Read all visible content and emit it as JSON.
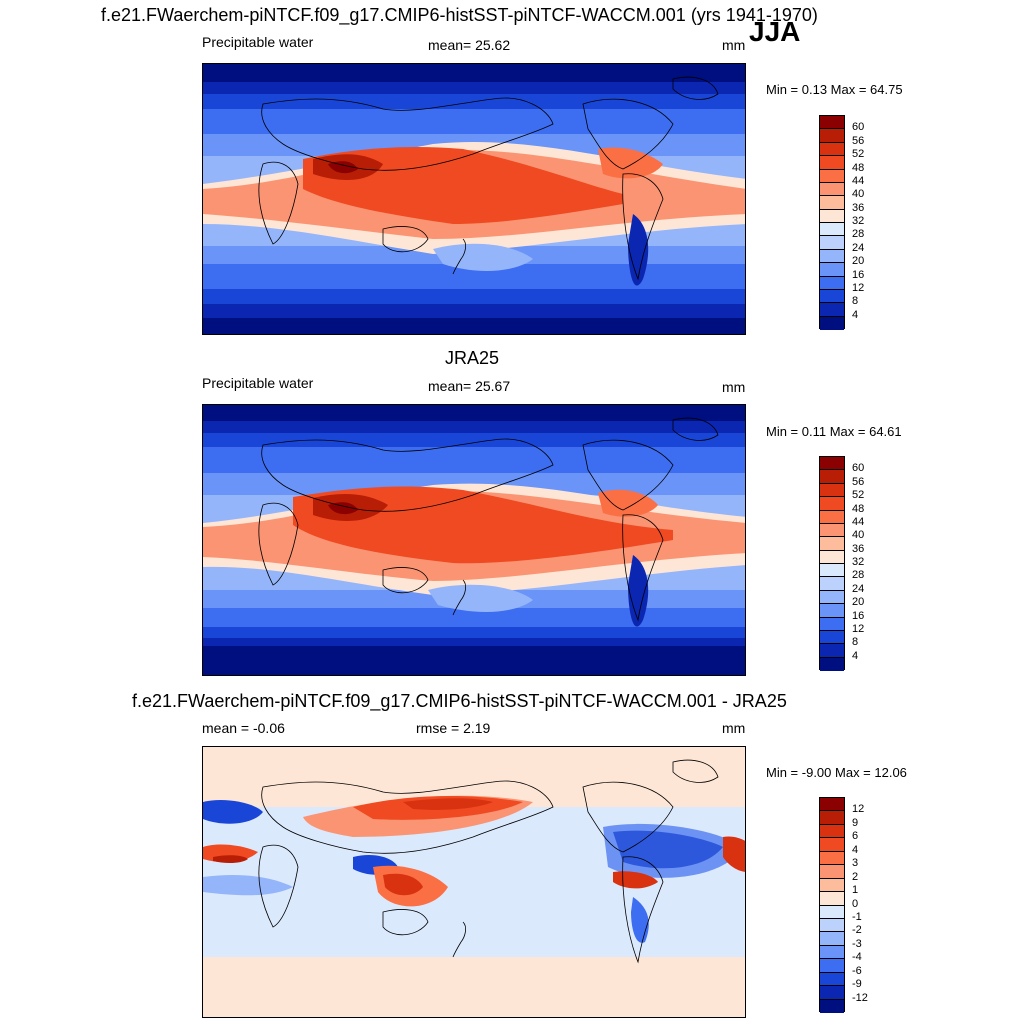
{
  "figure": {
    "season": "JJA"
  },
  "panels": [
    {
      "title": "f.e21.FWaerchem-piNTCF.f09_g17.CMIP6-histSST-piNTCF-WACCM.001 (yrs 1941-1970)",
      "left_label": "Precipitable water",
      "center_label": "mean=  25.62",
      "units": "mm",
      "minmax": "Min =   0.13 Max =  64.75",
      "field": "model_pw"
    },
    {
      "title": "JRA25",
      "left_label": "Precipitable water",
      "center_label": "mean=  25.67",
      "units": "mm",
      "minmax": "Min =   0.11 Max =  64.61",
      "field": "obs_pw"
    },
    {
      "title": "f.e21.FWaerchem-piNTCF.f09_g17.CMIP6-histSST-piNTCF-WACCM.001 - JRA25",
      "left_label": "mean =  -0.06",
      "center_label": "rmse =   2.19",
      "units": "mm",
      "minmax": "Min =  -9.00 Max =  12.06",
      "field": "difference"
    }
  ],
  "colorbars": {
    "pw": {
      "labels": [
        "60",
        "56",
        "52",
        "48",
        "44",
        "40",
        "36",
        "32",
        "28",
        "24",
        "20",
        "16",
        "12",
        "8",
        "4"
      ],
      "colors": [
        "#8b0000",
        "#b81d06",
        "#d93211",
        "#ef4a22",
        "#fb6f45",
        "#fb9472",
        "#fdbd9d",
        "#fee6d6",
        "#dbe9fd",
        "#bcd2fc",
        "#95b5fb",
        "#6a94f8",
        "#3d6df0",
        "#1a46d8",
        "#0b26b0",
        "#000f80"
      ]
    },
    "diff": {
      "labels": [
        "12",
        "9",
        "6",
        "4",
        "3",
        "2",
        "1",
        "0",
        "-1",
        "-2",
        "-3",
        "-4",
        "-6",
        "-9",
        "-12"
      ],
      "colors": [
        "#8b0000",
        "#b81d06",
        "#d93211",
        "#ef4a22",
        "#fb6f45",
        "#fb9472",
        "#fdbd9d",
        "#fee6d6",
        "#dbe9fd",
        "#bcd2fc",
        "#95b5fb",
        "#6a94f8",
        "#3d6df0",
        "#1a46d8",
        "#0b26b0",
        "#000f80"
      ]
    }
  }
}
